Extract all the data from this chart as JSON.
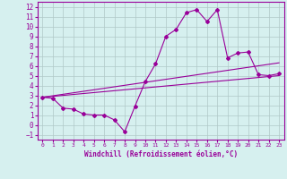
{
  "xlabel": "Windchill (Refroidissement éolien,°C)",
  "bg_color": "#d6f0ef",
  "grid_color": "#b0c8c8",
  "line_color": "#990099",
  "xlim": [
    -0.5,
    23.5
  ],
  "ylim": [
    -1.5,
    12.5
  ],
  "xticks": [
    0,
    1,
    2,
    3,
    4,
    5,
    6,
    7,
    8,
    9,
    10,
    11,
    12,
    13,
    14,
    15,
    16,
    17,
    18,
    19,
    20,
    21,
    22,
    23
  ],
  "yticks": [
    -1,
    0,
    1,
    2,
    3,
    4,
    5,
    6,
    7,
    8,
    9,
    10,
    11,
    12
  ],
  "main_x": [
    0,
    1,
    2,
    3,
    4,
    5,
    6,
    7,
    8,
    9,
    10,
    11,
    12,
    13,
    14,
    15,
    16,
    17,
    18,
    19,
    20,
    21,
    22,
    23
  ],
  "main_y": [
    2.8,
    2.7,
    1.7,
    1.6,
    1.1,
    1.0,
    1.0,
    0.5,
    -0.7,
    1.9,
    4.4,
    6.2,
    9.0,
    9.7,
    11.4,
    11.7,
    10.5,
    11.7,
    6.8,
    7.3,
    7.4,
    5.1,
    5.0,
    5.2
  ],
  "line1_x": [
    0,
    23
  ],
  "line1_y": [
    2.8,
    6.3
  ],
  "line2_x": [
    0,
    23
  ],
  "line2_y": [
    2.8,
    5.0
  ]
}
